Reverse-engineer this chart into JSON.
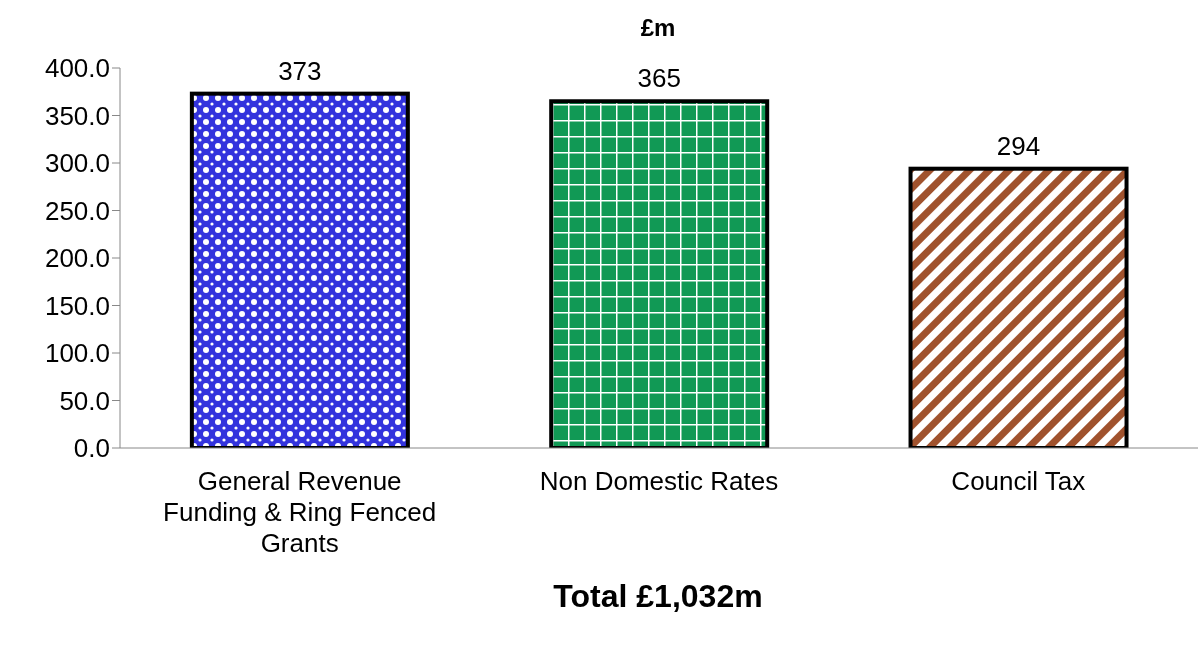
{
  "chart_data": {
    "type": "bar",
    "title": "£m",
    "xlabel": "Total £1,032m",
    "categories": [
      "General Revenue Funding & Ring Fenced Grants",
      "Non Domestic Rates",
      "Council Tax"
    ],
    "values": [
      373,
      365,
      294
    ],
    "colors": [
      "#3333dd",
      "#119955",
      "#a0522d"
    ],
    "ylim": [
      0,
      400
    ],
    "yticks": [
      {
        "value": 0,
        "label": "0.0"
      },
      {
        "value": 50,
        "label": "50.0"
      },
      {
        "value": 100,
        "label": "100.0"
      },
      {
        "value": 150,
        "label": "150.0"
      },
      {
        "value": 200,
        "label": "200.0"
      },
      {
        "value": 250,
        "label": "250.0"
      },
      {
        "value": 300,
        "label": "300.0"
      },
      {
        "value": 350,
        "label": "350.0"
      },
      {
        "value": 400,
        "label": "400.0"
      }
    ],
    "data_labels": true,
    "grid": false,
    "legend": false
  }
}
